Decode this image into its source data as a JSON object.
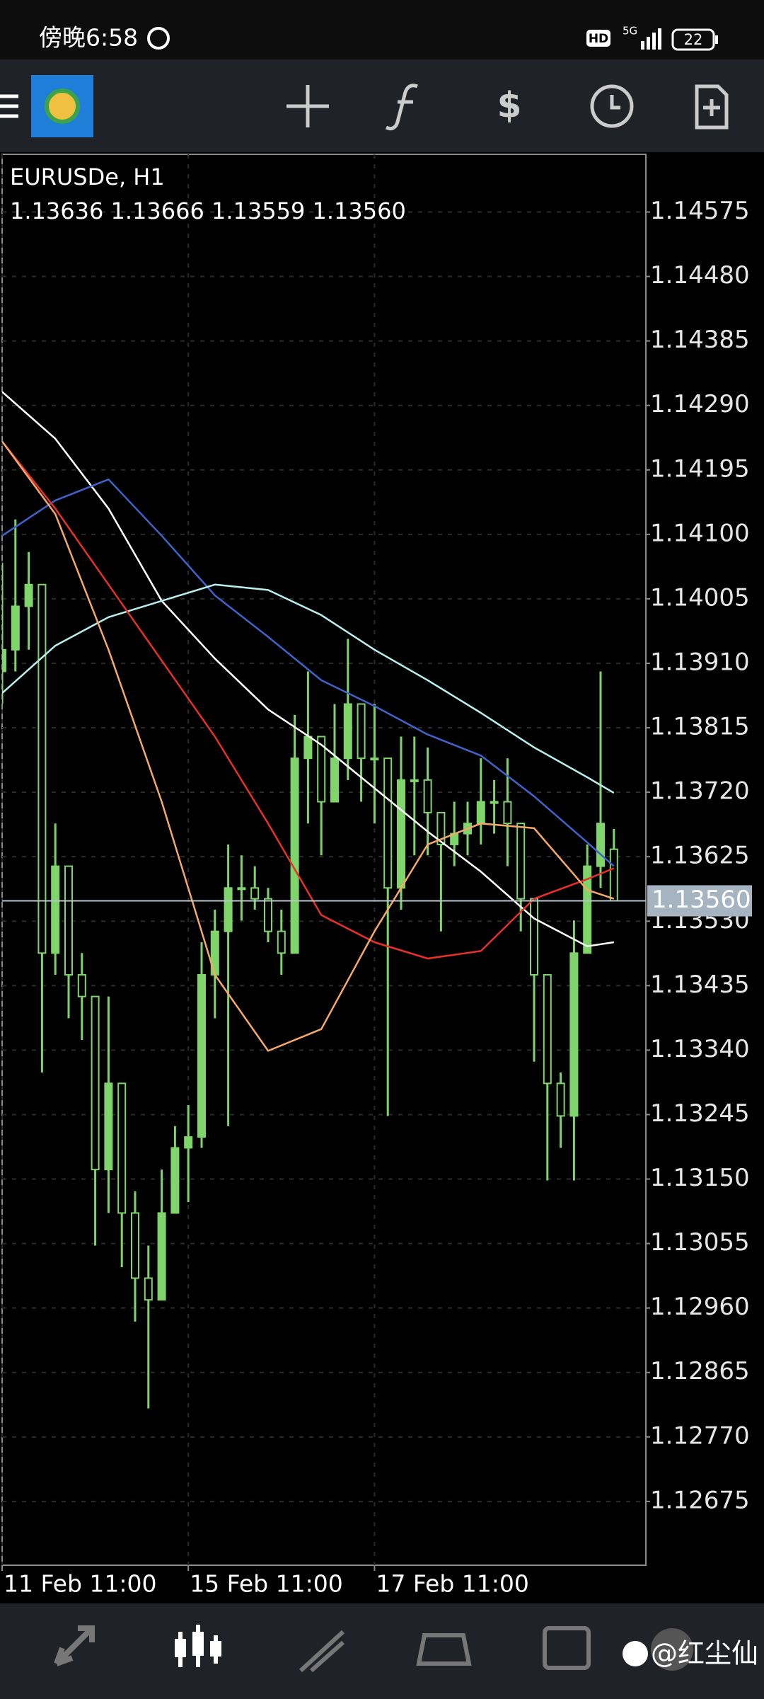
{
  "status_bar": {
    "time": "傍晚6:58",
    "network": "5G",
    "hd": "HD",
    "battery": "22"
  },
  "watermark": "@红尘仙",
  "chart_data": {
    "type": "candlestick",
    "symbol": "EURUSDe, H1",
    "ohlc": "1.13636 1.13666 1.13559 1.13560",
    "color": "#7fd46a",
    "categories": [
      "11 Feb 11:00",
      null,
      null,
      null,
      null,
      null,
      null,
      null,
      null,
      null,
      null,
      null,
      null,
      null,
      "15 Feb 11:00",
      null,
      null,
      null,
      null,
      null,
      null,
      null,
      null,
      null,
      null,
      null,
      null,
      null,
      "17 Feb 11:00",
      null,
      null,
      null,
      null,
      null,
      null,
      null,
      null,
      null,
      null,
      null,
      null,
      null,
      null,
      null,
      null,
      null,
      null
    ],
    "open": [
      1.13898,
      1.1393,
      1.13994,
      1.14026,
      1.13483,
      1.13611,
      1.13451,
      1.13419,
      1.13164,
      1.13291,
      1.131,
      1.13004,
      1.12972,
      1.131,
      1.13196,
      1.13212,
      1.13451,
      1.13515,
      1.13579,
      1.13579,
      1.13563,
      1.13515,
      1.13483,
      1.1377,
      1.13802,
      1.13706,
      1.1377,
      1.1385,
      1.1377,
      1.1377,
      1.13579,
      1.13738,
      1.13738,
      1.1369,
      1.13643,
      1.13659,
      1.13674,
      1.13706,
      1.13706,
      1.13674,
      1.13563,
      1.13451,
      1.13291,
      1.13243,
      1.13483,
      1.13611,
      1.13636
    ],
    "high": [
      1.14058,
      1.14122,
      1.14074,
      1.14026,
      1.13674,
      1.13611,
      1.13483,
      1.13419,
      1.13419,
      1.13291,
      1.13132,
      1.13052,
      1.13164,
      1.13228,
      1.13259,
      1.13499,
      1.13547,
      1.13643,
      1.13627,
      1.13611,
      1.13579,
      1.13547,
      1.13834,
      1.13898,
      1.13802,
      1.1385,
      1.13946,
      1.1385,
      1.1385,
      1.1377,
      1.13802,
      1.13802,
      1.13786,
      1.1369,
      1.13706,
      1.13706,
      1.1377,
      1.13738,
      1.1377,
      1.13674,
      1.13563,
      1.13451,
      1.13307,
      1.13531,
      1.13643,
      1.13898,
      1.13666
    ],
    "low": [
      1.1385,
      1.13898,
      1.1393,
      1.13307,
      1.13451,
      1.13387,
      1.13355,
      1.13052,
      1.131,
      1.1302,
      1.1294,
      1.12812,
      1.12972,
      1.131,
      1.13116,
      1.13196,
      1.13387,
      1.13228,
      1.13531,
      1.13547,
      1.13499,
      1.13451,
      1.13483,
      1.13674,
      1.13627,
      1.13706,
      1.13738,
      1.13706,
      1.13674,
      1.13243,
      1.13547,
      1.13627,
      1.13627,
      1.13515,
      1.13611,
      1.13627,
      1.13643,
      1.13659,
      1.13611,
      1.13515,
      1.13323,
      1.13148,
      1.13196,
      1.13148,
      1.13483,
      1.13579,
      1.13559
    ],
    "close": [
      1.1393,
      1.13994,
      1.14026,
      1.13483,
      1.13611,
      1.13451,
      1.13419,
      1.13164,
      1.13291,
      1.131,
      1.13004,
      1.12972,
      1.131,
      1.13196,
      1.13212,
      1.13451,
      1.13515,
      1.13579,
      1.13579,
      1.13563,
      1.13515,
      1.13483,
      1.1377,
      1.13802,
      1.13706,
      1.1377,
      1.1385,
      1.1377,
      1.1377,
      1.13579,
      1.13738,
      1.13738,
      1.1369,
      1.13643,
      1.13659,
      1.13674,
      1.13706,
      1.13706,
      1.13674,
      1.13563,
      1.13451,
      1.13291,
      1.13243,
      1.13483,
      1.13611,
      1.13674,
      1.1356
    ],
    "series": [
      {
        "color": "#ffffff",
        "x": [
          0,
          4,
          8,
          12,
          16,
          20,
          24,
          28,
          32,
          36,
          40,
          44,
          46
        ],
        "values": [
          1.1431,
          1.14241,
          1.14138,
          1.14002,
          1.13917,
          1.13842,
          1.1379,
          1.13726,
          1.13662,
          1.13603,
          1.13534,
          1.13493,
          1.13499
        ]
      },
      {
        "color": "#3f63c8",
        "x": [
          0,
          4,
          8,
          12,
          16,
          20,
          24,
          28,
          32,
          36,
          40,
          44,
          46
        ],
        "values": [
          1.14098,
          1.1415,
          1.14181,
          1.14098,
          1.1401,
          1.13949,
          1.13885,
          1.13847,
          1.13805,
          1.13774,
          1.13714,
          1.13646,
          1.13611
        ]
      },
      {
        "color": "#b8f0ee",
        "x": [
          0,
          4,
          8,
          12,
          16,
          20,
          24,
          28,
          32,
          36,
          40,
          44,
          46
        ],
        "values": [
          1.13866,
          1.13936,
          1.13978,
          1.14002,
          1.14026,
          1.14018,
          1.13981,
          1.1393,
          1.13885,
          1.13837,
          1.13786,
          1.13742,
          1.13719
        ]
      },
      {
        "color": "#e8302a",
        "x": [
          0,
          4,
          8,
          12,
          16,
          20,
          24,
          28,
          32,
          36,
          40,
          44,
          46
        ],
        "values": [
          1.14237,
          1.14138,
          1.14026,
          1.13914,
          1.13802,
          1.13674,
          1.13539,
          1.13499,
          1.13475,
          1.13486,
          1.13563,
          1.13592,
          1.13608
        ]
      },
      {
        "color": "#f5a868",
        "x": [
          0,
          4,
          8,
          12,
          16,
          20,
          24,
          28,
          32,
          36,
          40,
          44,
          46
        ],
        "values": [
          1.14237,
          1.1413,
          1.1393,
          1.13706,
          1.13451,
          1.13339,
          1.13371,
          1.13515,
          1.13643,
          1.13674,
          1.13667,
          1.13576,
          1.13563
        ]
      }
    ],
    "current_price": {
      "value": 1.1356,
      "label": "1.13560"
    },
    "ylim": [
      1.12581,
      1.1466
    ],
    "yticks": [
      1.14575,
      {
        "value": 1.1448,
        "label": "1.14480"
      },
      1.14385,
      {
        "value": 1.1429,
        "label": "1.14290"
      },
      1.14195,
      {
        "value": 1.141,
        "label": "1.14100"
      },
      1.14005,
      {
        "value": 1.1391,
        "label": "1.13910"
      },
      1.13815,
      {
        "value": 1.1372,
        "label": "1.13720"
      },
      1.13625,
      {
        "value": 1.1353,
        "label": "1.13530"
      },
      1.13435,
      {
        "value": 1.1334,
        "label": "1.13340"
      },
      1.13245,
      {
        "value": 1.1315,
        "label": "1.13150"
      },
      1.13055,
      {
        "value": 1.1296,
        "label": "1.12960"
      },
      1.12865,
      {
        "value": 1.1277,
        "label": "1.12770"
      },
      1.12675
    ],
    "grid": true
  }
}
